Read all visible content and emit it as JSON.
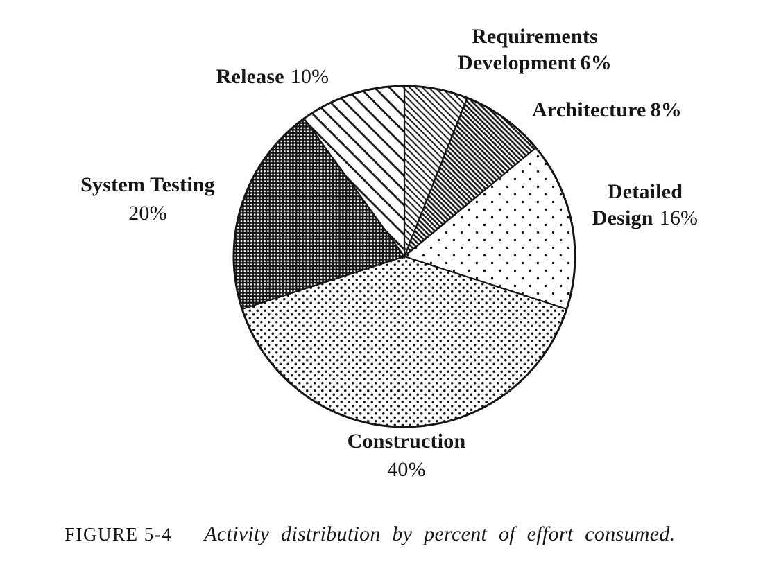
{
  "figure": {
    "label": "FIGURE 5-4",
    "caption": "Activity distribution by percent of effort consumed."
  },
  "chart_data": {
    "type": "pie",
    "title": "Activity distribution by percent of effort consumed",
    "unit": "percent of effort",
    "start_angle_deg_from_top_clockwise": 0,
    "slices": [
      {
        "id": "requirements-development",
        "label": "Requirements Development",
        "value": 6,
        "pattern": "hatch-req",
        "pattern_desc": "thin diagonal hatching"
      },
      {
        "id": "architecture",
        "label": "Architecture",
        "value": 8,
        "pattern": "hatch-arch",
        "pattern_desc": "dense diagonal hatching"
      },
      {
        "id": "detailed-design",
        "label": "Detailed Design",
        "value": 16,
        "pattern": "dots-detail",
        "pattern_desc": "sparse dots"
      },
      {
        "id": "construction",
        "label": "Construction",
        "value": 40,
        "pattern": "dots-constr",
        "pattern_desc": "medium dots"
      },
      {
        "id": "system-testing",
        "label": "System Testing",
        "value": 20,
        "pattern": "cross-test",
        "pattern_desc": "dark woven crosshatch"
      },
      {
        "id": "release",
        "label": "Release",
        "value": 10,
        "pattern": "hatch-release",
        "pattern_desc": "wide diagonal hatching"
      }
    ],
    "ink_color": "#161616",
    "background_color": "#ffffff",
    "legend": "none",
    "labels_outside": true
  },
  "labels": {
    "requirements": {
      "line1": "Requirements",
      "line2": "Development",
      "pct": "6%"
    },
    "architecture": {
      "name": "Architecture",
      "pct": "8%"
    },
    "detailed_design": {
      "line1": "Detailed",
      "line2": "Design",
      "pct": "16%"
    },
    "construction": {
      "name": "Construction",
      "pct": "40%"
    },
    "system_testing": {
      "name": "System Testing",
      "pct": "20%"
    },
    "release": {
      "name": "Release",
      "pct": "10%"
    }
  }
}
